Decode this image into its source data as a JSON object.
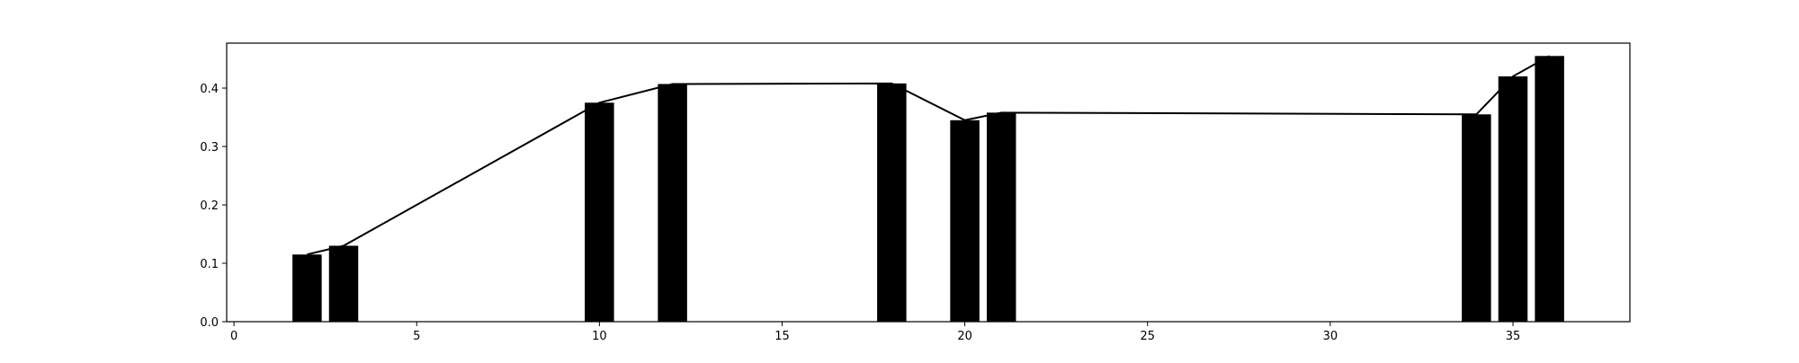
{
  "chart_data": {
    "type": "bar",
    "x": [
      2,
      3,
      10,
      12,
      18,
      20,
      21,
      34,
      35,
      36
    ],
    "values": [
      0.115,
      0.13,
      0.375,
      0.407,
      0.408,
      0.345,
      0.358,
      0.355,
      0.42,
      0.455
    ],
    "line": {
      "x": [
        2,
        3,
        10,
        12,
        18,
        20,
        21,
        34,
        35,
        36
      ],
      "y": [
        0.115,
        0.13,
        0.375,
        0.407,
        0.408,
        0.345,
        0.358,
        0.355,
        0.42,
        0.455
      ]
    },
    "xlim": [
      -0.2,
      38.2
    ],
    "ylim": [
      0.0,
      0.477
    ],
    "xticks": [
      0,
      5,
      10,
      15,
      20,
      25,
      30,
      35
    ],
    "xtick_labels": [
      "0",
      "5",
      "10",
      "15",
      "20",
      "25",
      "30",
      "35"
    ],
    "yticks": [
      0.0,
      0.1,
      0.2,
      0.3,
      0.4
    ],
    "ytick_labels": [
      "0.0",
      "0.1",
      "0.2",
      "0.3",
      "0.4"
    ],
    "bar_width": 0.8,
    "grid": false,
    "title": "",
    "xlabel": "",
    "ylabel": "",
    "colors": {
      "bar": "#000000",
      "line": "#000000",
      "axes": "#000000",
      "background": "#ffffff"
    }
  }
}
